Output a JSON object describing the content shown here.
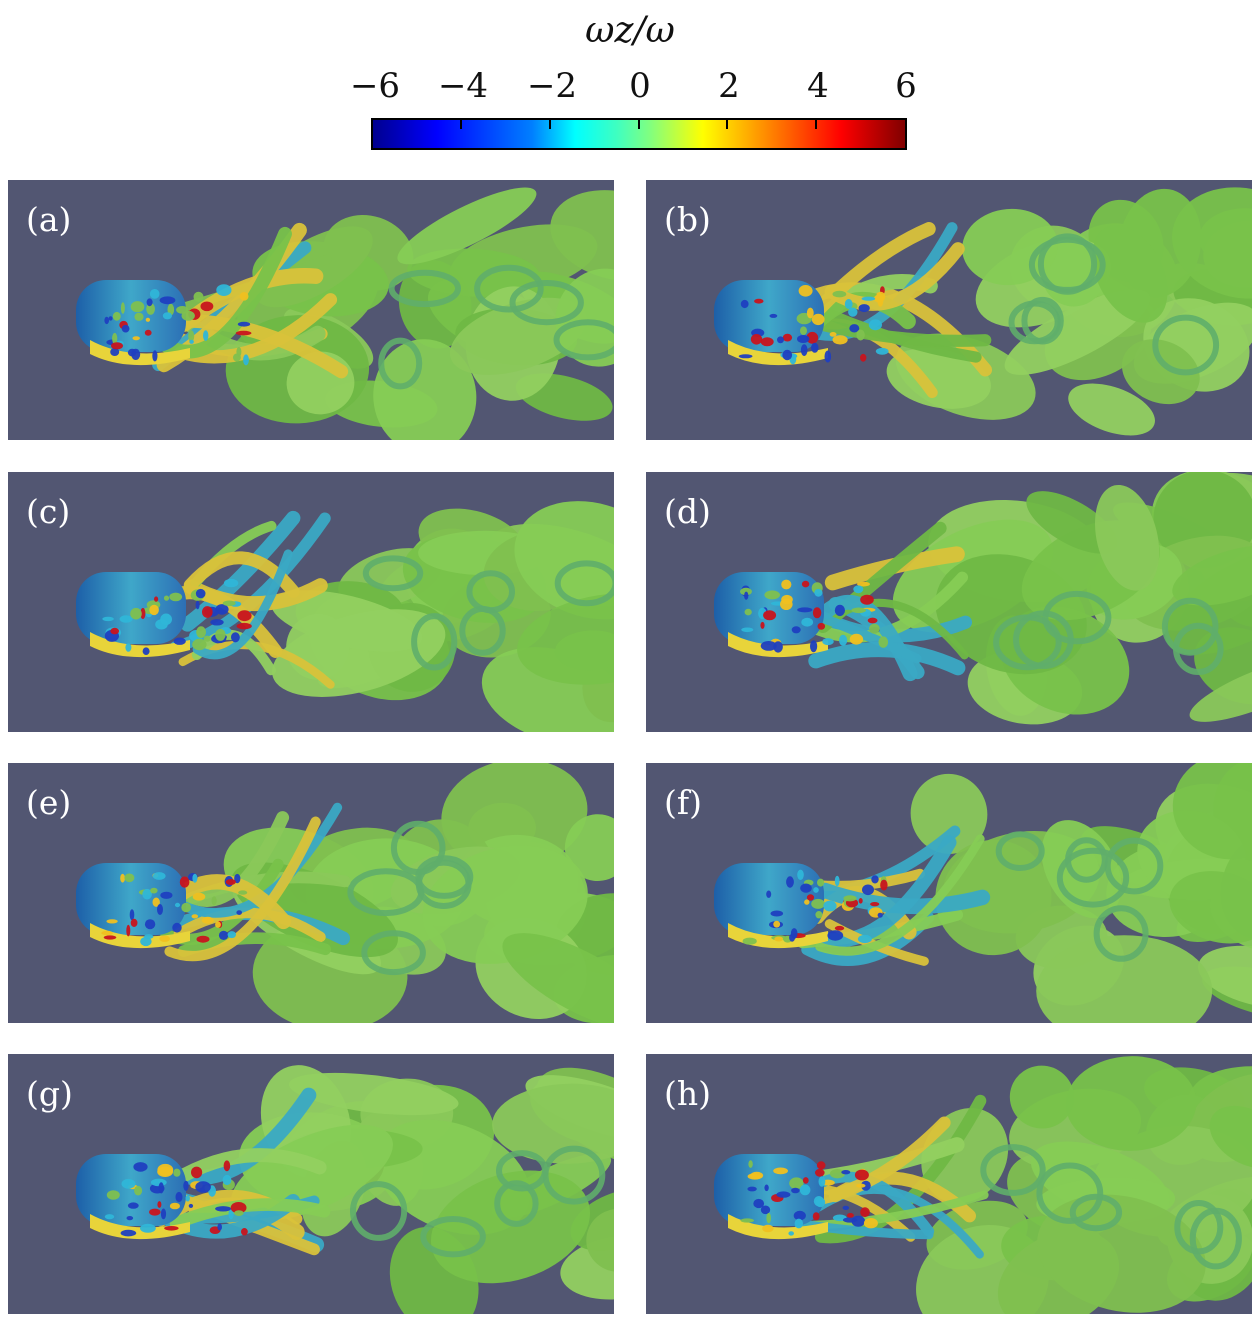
{
  "colorbar": {
    "title": "ωz/ω",
    "ticks": [
      "−6",
      "−4",
      "−2",
      "0",
      "2",
      "4",
      "6"
    ]
  },
  "panels": [
    {
      "label": "(a)"
    },
    {
      "label": "(b)"
    },
    {
      "label": "(c)"
    },
    {
      "label": "(d)"
    },
    {
      "label": "(e)"
    },
    {
      "label": "(f)"
    },
    {
      "label": "(g)"
    },
    {
      "label": "(h)"
    }
  ],
  "colors": {
    "background": "#525672",
    "wake_green": "#7ec850",
    "body_blue": "#2a6fb0",
    "body_yellow": "#e8d43a",
    "red": "#c8141e"
  }
}
